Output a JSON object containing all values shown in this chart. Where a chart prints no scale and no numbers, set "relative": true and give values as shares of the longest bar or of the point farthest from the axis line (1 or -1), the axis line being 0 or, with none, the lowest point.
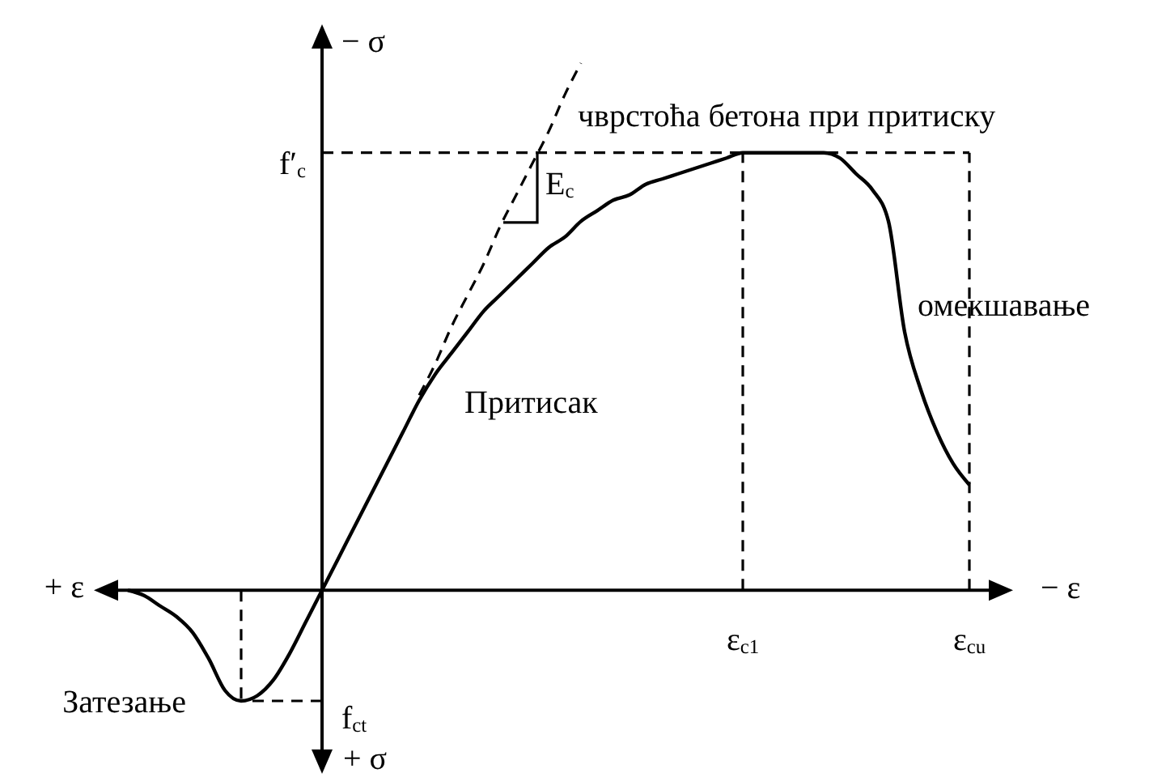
{
  "chart_data": {
    "type": "line",
    "relative": true,
    "xlabel": "− ε",
    "ylabel": "− σ",
    "marker": "none",
    "categories": [
      null,
      null,
      null,
      null,
      null,
      null,
      null,
      null,
      null,
      null,
      null,
      null,
      null,
      null,
      null,
      null,
      null,
      null,
      null,
      null,
      null,
      null,
      null,
      null,
      null,
      null,
      null,
      null,
      null,
      null,
      null,
      null,
      null,
      null,
      null,
      null,
      null,
      null,
      "ε$_{c1}$",
      null,
      null,
      null,
      null,
      null,
      null,
      null,
      null,
      null,
      null,
      null,
      null,
      null,
      "ε$_{cu}$"
    ],
    "series": [
      {
        "color": "#000000",
        "line_style": "solid",
        "values": [
          0,
          -0.01,
          -0.03,
          -0.05,
          -0.08,
          -0.13,
          -0.19,
          -0.21,
          -0.2,
          -0.17,
          -0.12,
          -0.06,
          0,
          0.06,
          0.12,
          0.18,
          0.24,
          0.3,
          0.36,
          0.41,
          0.45,
          0.49,
          0.53,
          0.56,
          0.59,
          0.62,
          0.65,
          0.67,
          0.7,
          0.72,
          0.74,
          0.75,
          0.77,
          0.78,
          0.79,
          0.8,
          0.81,
          0.82,
          0.83,
          0.83,
          0.83,
          0.83,
          0.83,
          0.83,
          0.82,
          0.79,
          0.76,
          0.7,
          0.49,
          0.38,
          0.3,
          0.24,
          0.2
        ]
      },
      {
        "color": "#000000",
        "line_style": "dashed",
        "values": [
          null,
          null,
          null,
          null,
          null,
          null,
          null,
          null,
          null,
          null,
          null,
          null,
          null,
          null,
          null,
          null,
          null,
          null,
          0.37,
          0.43,
          0.5,
          0.56,
          0.62,
          0.69,
          0.75,
          0.81,
          0.87,
          0.94,
          1,
          null,
          null,
          null,
          null,
          null,
          null,
          null,
          null,
          null,
          null,
          null,
          null,
          null,
          null,
          null,
          null,
          null,
          null,
          null,
          null,
          null,
          null,
          null,
          null
        ]
      }
    ],
    "ref_lines": [
      {
        "axis": "y",
        "value": 0.83,
        "label": "f′$_{c}$",
        "color": "#000000",
        "line_style": "dashed"
      },
      {
        "axis": "y",
        "value": -0.21,
        "label": "f$_{ct}$",
        "color": "#000000",
        "line_style": "dashed"
      },
      {
        "axis": "x",
        "value": "ε$_{c1}$",
        "color": "#000000",
        "line_style": "dashed"
      },
      {
        "axis": "x",
        "value": "ε$_{cu}$",
        "color": "#000000",
        "line_style": "dashed"
      }
    ],
    "annotations": [
      "чврстоћа бетона при притиску",
      "E$_{c}$",
      "Притисак",
      "омекшавање",
      "Затезање",
      "+ ε",
      "+ σ"
    ]
  }
}
